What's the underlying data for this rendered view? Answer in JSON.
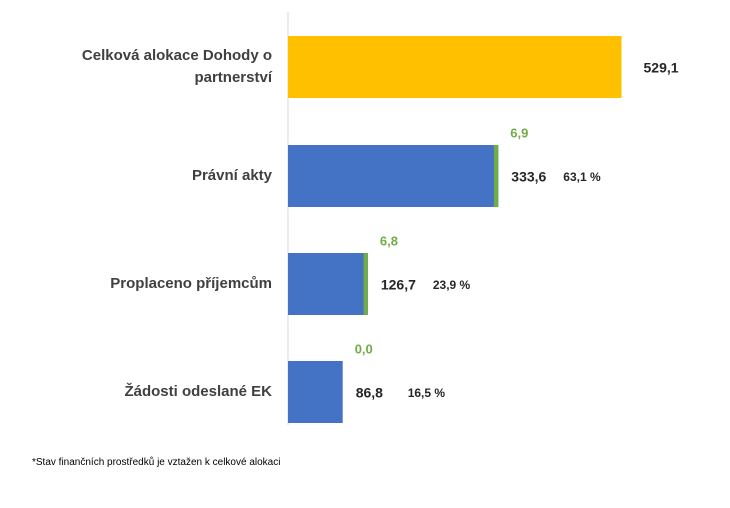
{
  "chart_data": {
    "type": "bar",
    "orientation": "horizontal",
    "categories": [
      "Celková alokace Dohody o partnerství",
      "Právní akty",
      "Proplaceno příjemcům",
      "Žádosti odeslané EK"
    ],
    "xlim": [
      0,
      560
    ],
    "series": [
      {
        "colors": [
          "#ffc000",
          "#4472c4",
          "#4472c4",
          "#4472c4"
        ],
        "values": [
          529.1,
          333.6,
          126.7,
          86.8
        ],
        "value_labels": [
          "529,1",
          "333,6",
          "126,7",
          "86,8"
        ],
        "percent": [
          null,
          63.1,
          23.9,
          16.5
        ],
        "percent_labels": [
          null,
          "63,1 %",
          "23,9 %",
          "16,5 %"
        ]
      },
      {
        "color": "#70ad47",
        "values": [
          null,
          6.9,
          6.8,
          0.0
        ],
        "value_labels": [
          null,
          "6,9",
          "6,8",
          "0,0"
        ]
      }
    ],
    "footnote": "*Stav finančních prostředků je vztažen k celkové alokaci"
  }
}
